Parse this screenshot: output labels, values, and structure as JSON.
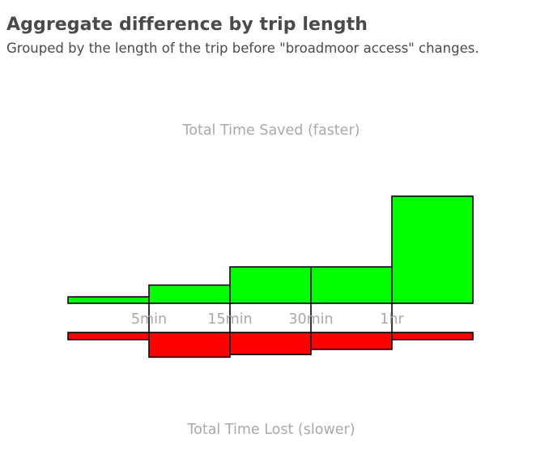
{
  "header": {
    "title": "Aggregate difference by trip length",
    "subtitle": "Grouped by the length of the trip before \"broadmoor access\" changes."
  },
  "chart_data": {
    "type": "bar",
    "title": "Aggregate difference by trip length",
    "subtitle": "Grouped by the length of the trip before \"broadmoor access\" changes.",
    "categories": [
      "< 5min",
      "5min–15min",
      "15min–30min",
      "30min–1hr",
      "> 1hr"
    ],
    "tick_labels": [
      "5min",
      "15min",
      "30min",
      "1hr"
    ],
    "top_label": "Total Time Saved (faster)",
    "bottom_label": "Total Time Lost (slower)",
    "series": [
      {
        "values": [
          0.06,
          0.17,
          0.34,
          0.34,
          1.0
        ],
        "color": "#00ff00"
      },
      {
        "values": [
          0.11,
          0.38,
          0.34,
          0.26,
          0.11
        ],
        "color": "#ff0000"
      }
    ],
    "grid": false,
    "legend": "none"
  }
}
